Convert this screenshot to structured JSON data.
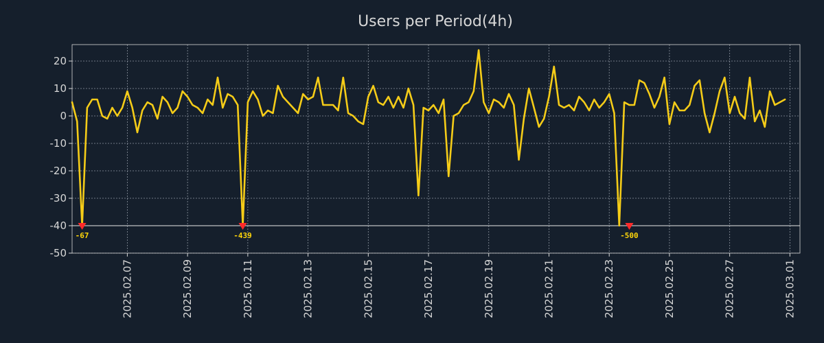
{
  "colors": {
    "background": "#151f2c",
    "series": "#f5cc18",
    "grid": "#aab2bd",
    "axis": "#d7d7d7",
    "marker": "#ff2a2a",
    "floor_line": "#e9e9e9",
    "annotation": "#ffd60a"
  },
  "chart_data": {
    "type": "line",
    "title": "Users per Period(4h)",
    "xlabel": "",
    "ylabel": "",
    "ylim": [
      -50,
      26
    ],
    "yticks": [
      -50,
      -40,
      -30,
      -20,
      -10,
      0,
      10,
      20
    ],
    "grid": true,
    "x_start": "2025.02.05 04:00",
    "x_step_hours": 4,
    "xlim_index": [
      0,
      145
    ],
    "xticks": [
      {
        "label": "2025.02.07",
        "index": 11
      },
      {
        "label": "2025.02.09",
        "index": 23
      },
      {
        "label": "2025.02.11",
        "index": 35
      },
      {
        "label": "2025.02.13",
        "index": 47
      },
      {
        "label": "2025.02.15",
        "index": 59
      },
      {
        "label": "2025.02.17",
        "index": 71
      },
      {
        "label": "2025.02.19",
        "index": 83
      },
      {
        "label": "2025.02.21",
        "index": 95
      },
      {
        "label": "2025.02.23",
        "index": 107
      },
      {
        "label": "2025.02.25",
        "index": 119
      },
      {
        "label": "2025.02.27",
        "index": 131
      },
      {
        "label": "2025.03.01",
        "index": 143
      }
    ],
    "floor_value": -40,
    "series": [
      {
        "name": "Users",
        "values": [
          5,
          -2,
          -40,
          3,
          6,
          6,
          0,
          -1,
          3,
          0,
          3,
          9,
          3,
          -6,
          2,
          5,
          4,
          -1,
          7,
          5,
          1,
          3,
          9,
          7,
          4,
          3,
          1,
          6,
          4,
          14,
          3,
          8,
          7,
          4,
          -40,
          5,
          9,
          6,
          0,
          2,
          1,
          11,
          7,
          5,
          3,
          1,
          8,
          6,
          7,
          14,
          4,
          4,
          4,
          2,
          14,
          1,
          0,
          -2,
          -3,
          7,
          11,
          5,
          4,
          7,
          3,
          7,
          3,
          10,
          4,
          -29,
          3,
          2,
          4,
          1,
          6,
          -22,
          0,
          1,
          4,
          5,
          9,
          24,
          5,
          1,
          6,
          5,
          3,
          8,
          4,
          -16,
          -1,
          10,
          3,
          -4,
          -1,
          7,
          18,
          4,
          3,
          4,
          2,
          7,
          5,
          2,
          6,
          3,
          5,
          8,
          1,
          -40,
          5,
          4,
          4,
          13,
          12,
          8,
          3,
          7,
          14,
          -3,
          5,
          2,
          2,
          4,
          11,
          13,
          1,
          -6,
          1,
          9,
          14,
          1,
          7,
          1,
          -1,
          14,
          -2,
          2,
          -4,
          9,
          4,
          5,
          6
        ]
      }
    ],
    "annotations": [
      {
        "index": 2,
        "value": -40,
        "label": "-67"
      },
      {
        "index": 34,
        "value": -40,
        "label": "-439"
      },
      {
        "index": 111,
        "value": -40,
        "label": "-500"
      }
    ]
  }
}
